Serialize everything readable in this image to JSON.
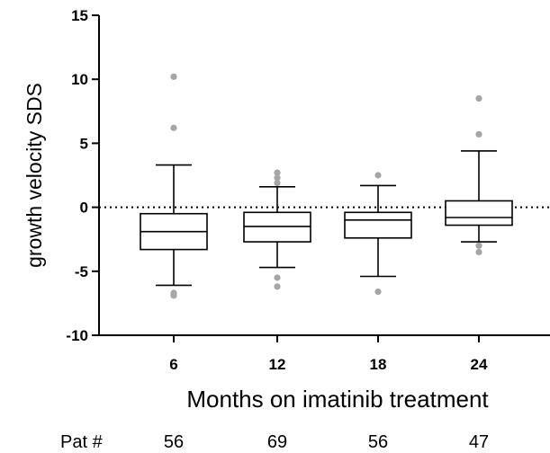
{
  "chart_data": {
    "type": "box",
    "xlabel": "Months on imatinib treatment",
    "ylabel": "growth velocity SDS",
    "ylim": [
      -10,
      15
    ],
    "yticks": [
      "15",
      "10",
      "5",
      "0",
      "-5",
      "-10"
    ],
    "reference_line": 0,
    "categories": [
      "6",
      "12",
      "18",
      "24"
    ],
    "boxes": [
      {
        "category": "6",
        "whisker_low": -6.1,
        "q1": -3.3,
        "median": -1.9,
        "q3": -0.5,
        "whisker_high": 3.3,
        "outliers": [
          10.2,
          6.2,
          -6.7,
          -6.9
        ]
      },
      {
        "category": "12",
        "whisker_low": -4.7,
        "q1": -2.7,
        "median": -1.5,
        "q3": -0.4,
        "whisker_high": 1.6,
        "outliers": [
          2.7,
          2.3,
          1.9,
          -5.5,
          -6.2
        ]
      },
      {
        "category": "18",
        "whisker_low": -5.4,
        "q1": -2.4,
        "median": -1.0,
        "q3": -0.4,
        "whisker_high": 1.7,
        "outliers": [
          2.5,
          -6.6
        ]
      },
      {
        "category": "24",
        "whisker_low": -2.7,
        "q1": -1.4,
        "median": -0.8,
        "q3": 0.5,
        "whisker_high": 4.4,
        "outliers": [
          8.5,
          5.7,
          -3.0,
          -3.5
        ]
      }
    ],
    "patients": {
      "label": "Pat #",
      "counts": [
        "56",
        "69",
        "56",
        "47"
      ]
    },
    "colors": {
      "box": "#000000",
      "outlier": "#a6a6a6",
      "reference": "#000000"
    }
  }
}
